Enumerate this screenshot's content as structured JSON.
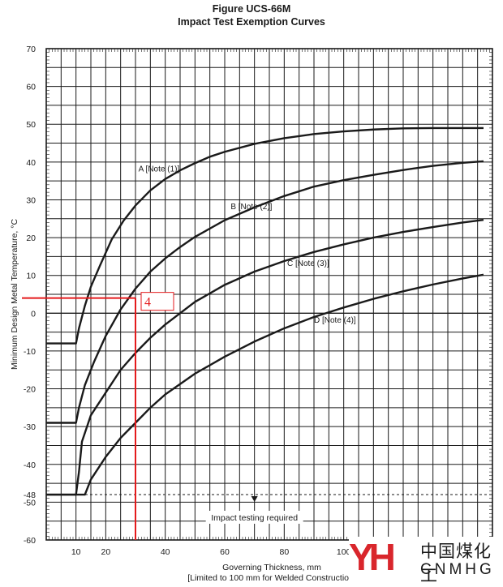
{
  "chart_data": {
    "type": "line",
    "title": "Figure UCS-66M",
    "subtitle": "Impact Test Exemption Curves",
    "xlabel": "Governing Thickness, mm",
    "xlabel_note": "[Limited to 100 mm for Welded Construction]",
    "ylabel": "Minimum Design Metal Temperature, °C",
    "xlim": [
      0,
      150
    ],
    "ylim": [
      -60,
      70
    ],
    "grid": true,
    "x_ticks": [
      "10",
      "20",
      "40",
      "60",
      "80",
      "100"
    ],
    "y_ticks": [
      "70",
      "60",
      "50",
      "40",
      "30",
      "20",
      "10",
      "0",
      "-10",
      "-20",
      "-30",
      "-40",
      "-48",
      "-50",
      "-60"
    ],
    "series": [
      {
        "name": "A [Note (1)]",
        "x": [
          0,
          10,
          11,
          13,
          15,
          18,
          22,
          26,
          30,
          35,
          40,
          45,
          50,
          55,
          60,
          70,
          80,
          90,
          100,
          110,
          120,
          130,
          140,
          147
        ],
        "y": [
          -8,
          -8,
          -4,
          2,
          7,
          12.5,
          19.5,
          24.5,
          28.5,
          32.5,
          35.5,
          37.8,
          39.7,
          41.4,
          42.7,
          44.8,
          46.3,
          47.4,
          48.1,
          48.6,
          48.9,
          49,
          49,
          49
        ]
      },
      {
        "name": "B [Note (2)]",
        "x": [
          0,
          10,
          11,
          13,
          16,
          20,
          25,
          30,
          35,
          40,
          45,
          50,
          60,
          70,
          80,
          90,
          100,
          110,
          120,
          130,
          140,
          147
        ],
        "y": [
          -29,
          -29,
          -25,
          -19,
          -13,
          -6,
          1,
          6.5,
          11,
          14.5,
          17.5,
          20.2,
          24.6,
          28,
          31,
          33.5,
          35.2,
          36.6,
          37.9,
          39,
          39.8,
          40.2
        ]
      },
      {
        "name": "C [Note (3)]",
        "x": [
          0,
          10,
          11,
          12,
          15,
          20,
          25,
          30,
          35,
          40,
          50,
          60,
          70,
          80,
          90,
          100,
          110,
          120,
          130,
          140,
          147
        ],
        "y": [
          -48,
          -48,
          -42,
          -34,
          -27,
          -21,
          -15,
          -10.5,
          -6.5,
          -3,
          3,
          7.5,
          11,
          13.8,
          16.2,
          18.2,
          20,
          21.5,
          22.8,
          24,
          24.7
        ]
      },
      {
        "name": "D [Note (4)]",
        "x": [
          0,
          13,
          15,
          20,
          25,
          30,
          35,
          40,
          50,
          60,
          70,
          80,
          90,
          100,
          110,
          120,
          130,
          140,
          147
        ],
        "y": [
          -48,
          -48,
          -44,
          -38,
          -33,
          -29,
          -25,
          -21.5,
          -16,
          -11.5,
          -7.5,
          -4,
          -1,
          1.5,
          3.8,
          5.8,
          7.6,
          9.2,
          10.2
        ]
      }
    ],
    "annotations": [
      {
        "text": "Impact testing required",
        "x": 70,
        "y": -48
      },
      {
        "text": "4",
        "marker_x": 30,
        "marker_y": 4
      }
    ]
  },
  "watermark": {
    "mark": "YH",
    "name_cn": "中国煤化工",
    "name_en": "CNMHG"
  }
}
